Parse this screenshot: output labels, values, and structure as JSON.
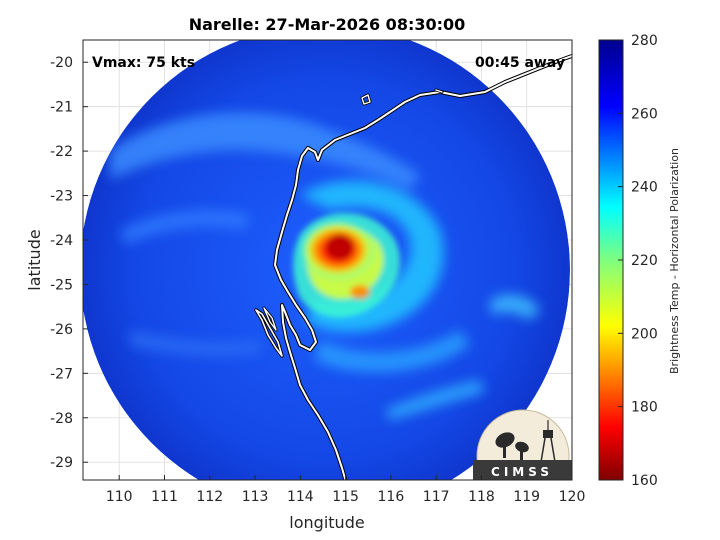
{
  "chart_data": {
    "type": "heatmap",
    "title": "Narelle: 27-Mar-2026 08:30:00",
    "xlabel": "longitude",
    "ylabel": "latitude",
    "xlim": [
      109.2,
      120
    ],
    "ylim": [
      -29.4,
      -19.5
    ],
    "x_ticks": [
      "110",
      "111",
      "112",
      "113",
      "114",
      "115",
      "116",
      "117",
      "118",
      "119",
      "120"
    ],
    "y_ticks": [
      "-20",
      "-21",
      "-22",
      "-23",
      "-24",
      "-25",
      "-26",
      "-27",
      "-28",
      "-29"
    ],
    "grid": true,
    "annotations": {
      "vmax": "Vmax: 75 kts",
      "time_away": "00:45 away"
    },
    "colorbar": {
      "label": "Brightness Temp - Horizontal Polarization",
      "range": [
        160,
        280
      ],
      "ticks": [
        "160",
        "180",
        "200",
        "220",
        "240",
        "260",
        "280"
      ],
      "colormap": "jet"
    },
    "storm_center": {
      "lon": 114.6,
      "lat": -24.15,
      "min_value": 170
    },
    "swath": {
      "center_lon": 114.6,
      "center_lat": -24.15,
      "radius_deg_lon": 5.2
    },
    "logo_text": "CIMSS"
  }
}
